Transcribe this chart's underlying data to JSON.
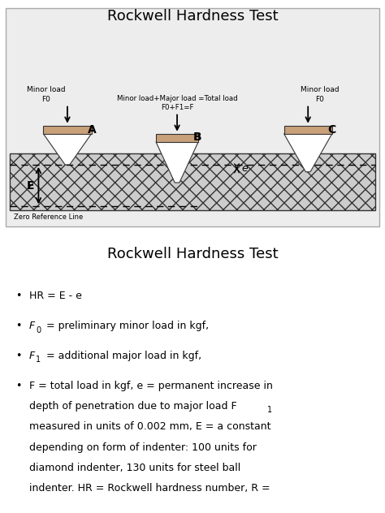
{
  "title1": "Rockwell Hardness Test",
  "title2": "Rockwell Hardness Test",
  "indenter_fill": "#c8a07a",
  "label_A": "A",
  "label_B": "B",
  "label_C": "C",
  "label_e": "e",
  "label_E": "E",
  "minor_load_text_left": "Minor load\nF0",
  "minor_load_text_right": "Minor load\nF0",
  "total_load_text": "Minor load+Major load =Total load\nF0+F1=F",
  "zero_ref_text": "Zero Reference Line",
  "diagram_facecolor": "#e8e8e8",
  "diagram_edgecolor": "#aaaaaa",
  "material_facecolor": "#d4d4d4",
  "bullet1": "HR = E - e",
  "bullet2_pre": "F",
  "bullet2_sub": "0",
  "bullet2_post": " = preliminary minor load in kgf,",
  "bullet3_pre": "F",
  "bullet3_sub": "1",
  "bullet3_post": " = additional major load in kgf,",
  "bullet4_line1": "F = total load in kgf, e = permanent increase in",
  "bullet4_line2": "depth of penetration due to major load F",
  "bullet4_line2_sub": "1",
  "bullet4_line3": "measured in units of 0.002 mm, E = a constant",
  "bullet4_line4": "depending on form of indenter: 100 units for",
  "bullet4_line5": "diamond indenter, 130 units for steel ball",
  "bullet4_line6": "indenter. HR = Rockwell hardness number, R ="
}
